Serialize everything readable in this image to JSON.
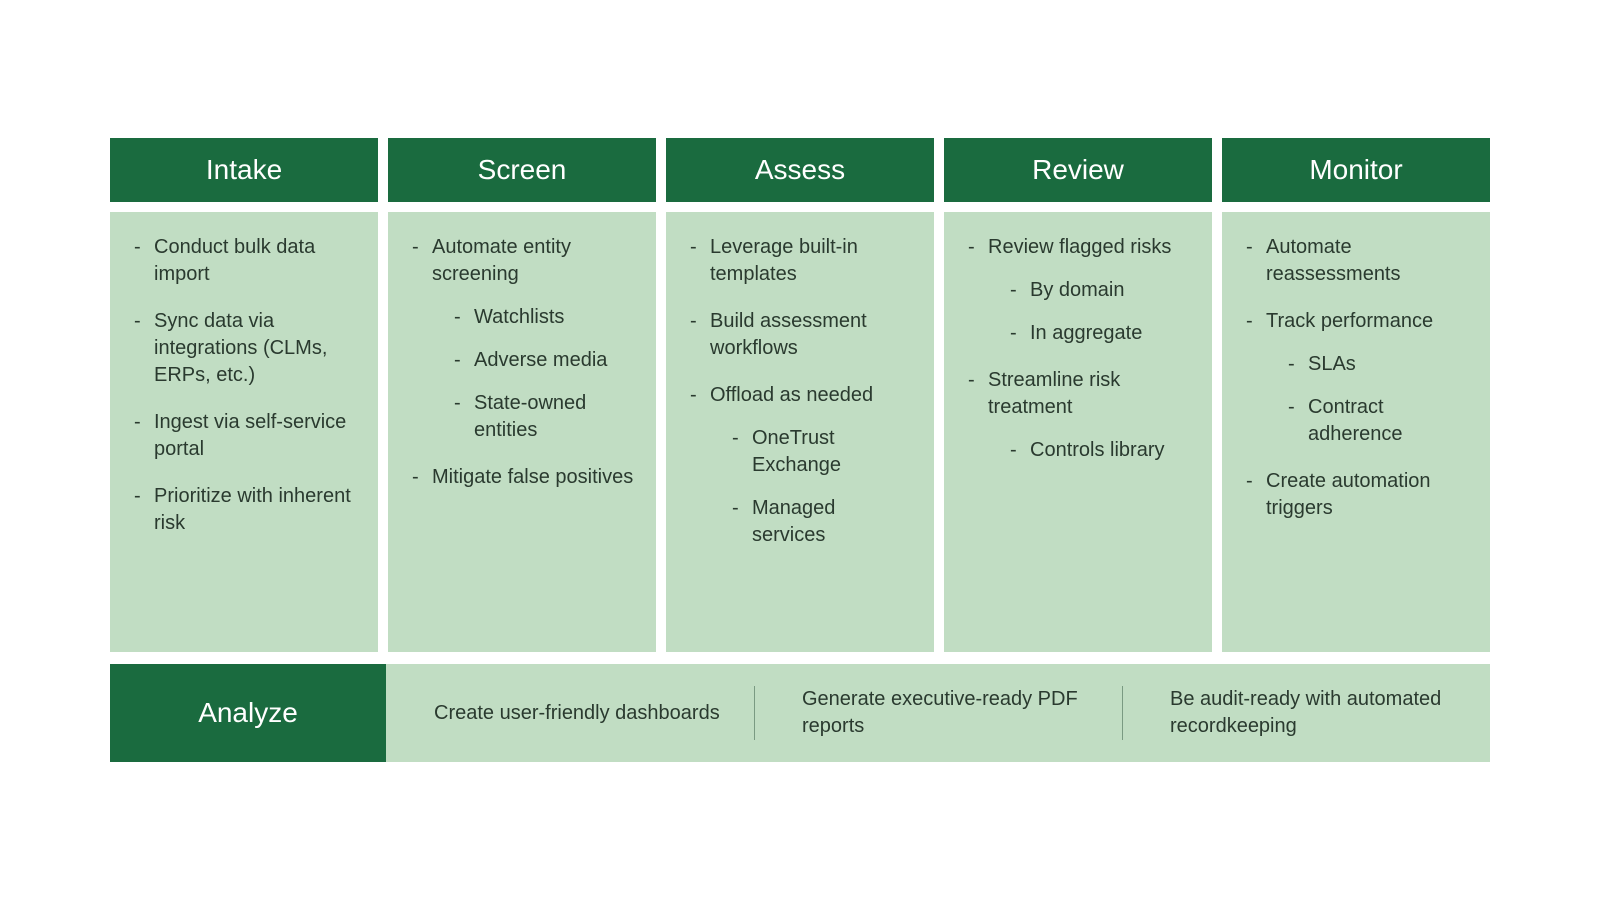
{
  "colors": {
    "header_bg": "#1a6b3f",
    "header_text": "#ffffff",
    "body_bg": "#c1ddc3",
    "body_text": "#2a3a2f",
    "divider": "#7a9a82",
    "page_bg": "#ffffff"
  },
  "typography": {
    "header_fontsize": 28,
    "body_fontsize": 20,
    "font_family": "-apple-system, BlinkMacSystemFont, Segoe UI, Helvetica, Arial, sans-serif"
  },
  "layout": {
    "columns": 5,
    "column_gap": 10,
    "body_min_height": 440
  },
  "columns": [
    {
      "header": "Intake",
      "items": [
        {
          "label": "Conduct bulk data import"
        },
        {
          "label": "Sync data via integrations (CLMs, ERPs, etc.)"
        },
        {
          "label": "Ingest via self-service portal"
        },
        {
          "label": "Prioritize with inherent risk"
        }
      ]
    },
    {
      "header": "Screen",
      "items": [
        {
          "label": "Automate entity screening",
          "children": [
            {
              "label": "Watchlists"
            },
            {
              "label": "Adverse media"
            },
            {
              "label": "State-owned entities"
            }
          ]
        },
        {
          "label": "Mitigate false positives"
        }
      ]
    },
    {
      "header": "Assess",
      "items": [
        {
          "label": "Leverage built-in templates"
        },
        {
          "label": "Build assessment workflows"
        },
        {
          "label": "Offload as needed",
          "children": [
            {
              "label": "OneTrust Exchange"
            },
            {
              "label": "Managed services"
            }
          ]
        }
      ]
    },
    {
      "header": "Review",
      "items": [
        {
          "label": "Review flagged risks",
          "children": [
            {
              "label": "By domain"
            },
            {
              "label": "In aggregate"
            }
          ]
        },
        {
          "label": "Streamline risk treatment",
          "children": [
            {
              "label": "Controls library"
            }
          ]
        }
      ]
    },
    {
      "header": "Monitor",
      "items": [
        {
          "label": "Automate reassessments"
        },
        {
          "label": "Track performance",
          "children": [
            {
              "label": "SLAs"
            },
            {
              "label": "Contract adherence"
            }
          ]
        },
        {
          "label": "Create automation triggers"
        }
      ]
    }
  ],
  "analyze": {
    "header": "Analyze",
    "items": [
      "Create user-friendly dashboards",
      "Generate executive-ready PDF reports",
      "Be audit-ready with automated recordkeeping"
    ]
  }
}
